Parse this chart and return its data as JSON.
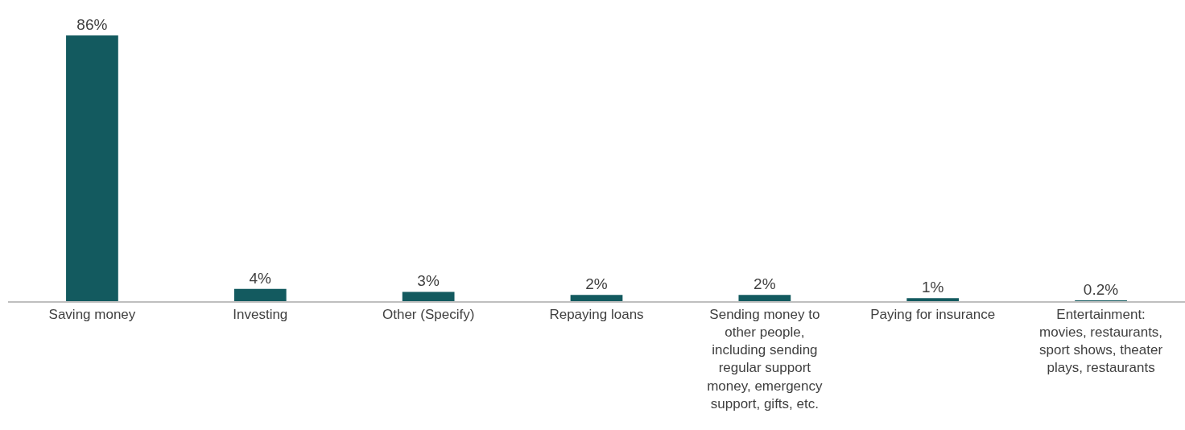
{
  "chart_data": {
    "type": "bar",
    "categories": [
      "Saving money",
      "Investing",
      "Other (Specify)",
      "Repaying loans",
      "Sending money to other people, including sending regular support money, emergency support, gifts, etc.",
      "Paying for insurance",
      "Entertainment: movies, restaurants, sport shows, theater plays, restaurants"
    ],
    "values": [
      86,
      4,
      3,
      2,
      2,
      1,
      0.2
    ],
    "value_labels": [
      "86%",
      "4%",
      "3%",
      "2%",
      "2%",
      "1%",
      "0.2%"
    ],
    "color": "#135a5f",
    "grid": false,
    "legend": false
  }
}
